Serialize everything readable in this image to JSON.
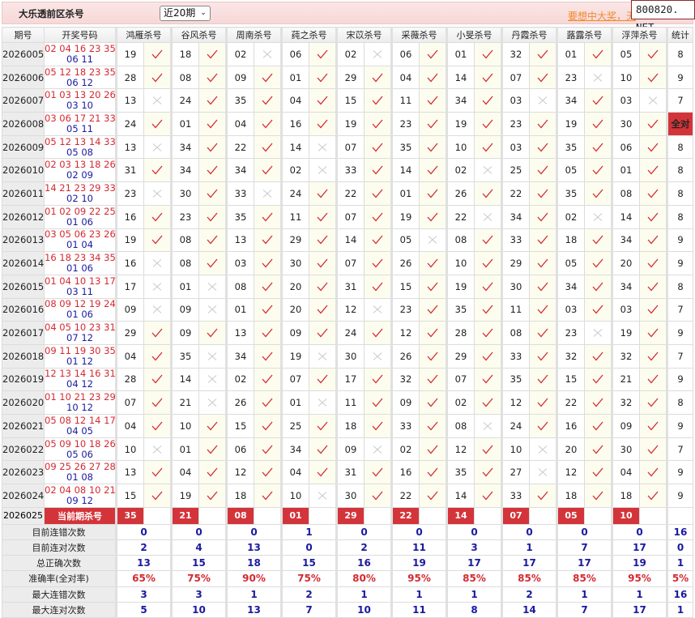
{
  "header": {
    "title": "大乐透前区杀号",
    "period_select": "近20期",
    "promo_link": "要想中大奖，天",
    "site_badge": "800820. NET"
  },
  "colors": {
    "hit": "#d42a32",
    "miss": "#cccccc",
    "accent": "#d3343a",
    "stat_value": "#1a1aa0"
  },
  "table": {
    "col_issue": "期号",
    "col_draw": "开奖号码",
    "col_count": "统计",
    "groups": [
      "鸿雁杀号",
      "谷风杀号",
      "周南杀号",
      "莼之杀号",
      "宋苡杀号",
      "采薇杀号",
      "小旻杀号",
      "丹霞杀号",
      "蕗露杀号",
      "浮萍杀号"
    ],
    "rows": [
      {
        "issue": "2026005",
        "red": "02 04 16 23 35",
        "blue": "06 11",
        "nums": [
          "19",
          "18",
          "02",
          "06",
          "02",
          "06",
          "01",
          "32",
          "01",
          "05"
        ],
        "hits": [
          1,
          1,
          0,
          1,
          0,
          1,
          1,
          1,
          1,
          1
        ],
        "count": "8"
      },
      {
        "issue": "2026006",
        "red": "05 12 18 23 35",
        "blue": "06 12",
        "nums": [
          "28",
          "08",
          "09",
          "01",
          "29",
          "04",
          "14",
          "07",
          "23",
          "10"
        ],
        "hits": [
          1,
          1,
          1,
          1,
          1,
          1,
          1,
          1,
          0,
          1
        ],
        "count": "9"
      },
      {
        "issue": "2026007",
        "red": "01 03 13 20 26",
        "blue": "03 10",
        "nums": [
          "13",
          "24",
          "35",
          "04",
          "15",
          "11",
          "34",
          "03",
          "34",
          "03"
        ],
        "hits": [
          0,
          1,
          1,
          1,
          1,
          1,
          1,
          0,
          1,
          0
        ],
        "count": "7"
      },
      {
        "issue": "2026008",
        "red": "03 06 17 21 33",
        "blue": "05 11",
        "nums": [
          "24",
          "01",
          "04",
          "16",
          "19",
          "23",
          "19",
          "23",
          "19",
          "30"
        ],
        "hits": [
          1,
          1,
          1,
          1,
          1,
          1,
          1,
          1,
          1,
          1
        ],
        "count": "全对"
      },
      {
        "issue": "2026009",
        "red": "05 12 13 14 33",
        "blue": "05 08",
        "nums": [
          "13",
          "34",
          "22",
          "14",
          "07",
          "35",
          "10",
          "03",
          "35",
          "06"
        ],
        "hits": [
          0,
          1,
          1,
          0,
          1,
          1,
          1,
          1,
          1,
          1
        ],
        "count": "8"
      },
      {
        "issue": "2026010",
        "red": "02 03 13 18 26",
        "blue": "02 09",
        "nums": [
          "31",
          "34",
          "34",
          "02",
          "33",
          "14",
          "02",
          "25",
          "05",
          "01"
        ],
        "hits": [
          1,
          1,
          1,
          0,
          1,
          1,
          0,
          1,
          1,
          1
        ],
        "count": "8"
      },
      {
        "issue": "2026011",
        "red": "14 21 23 29 33",
        "blue": "02 10",
        "nums": [
          "23",
          "30",
          "33",
          "24",
          "22",
          "01",
          "26",
          "22",
          "35",
          "08"
        ],
        "hits": [
          0,
          1,
          0,
          1,
          1,
          1,
          1,
          1,
          1,
          1
        ],
        "count": "8"
      },
      {
        "issue": "2026012",
        "red": "01 02 09 22 25",
        "blue": "01 06",
        "nums": [
          "16",
          "23",
          "35",
          "11",
          "07",
          "19",
          "22",
          "34",
          "02",
          "14"
        ],
        "hits": [
          1,
          1,
          1,
          1,
          1,
          1,
          0,
          1,
          0,
          1
        ],
        "count": "8"
      },
      {
        "issue": "2026013",
        "red": "03 05 06 23 26",
        "blue": "01 04",
        "nums": [
          "19",
          "08",
          "13",
          "29",
          "14",
          "05",
          "08",
          "33",
          "18",
          "34"
        ],
        "hits": [
          1,
          1,
          1,
          1,
          1,
          0,
          1,
          1,
          1,
          1
        ],
        "count": "9"
      },
      {
        "issue": "2026014",
        "red": "16 18 23 34 35",
        "blue": "01 06",
        "nums": [
          "16",
          "08",
          "03",
          "30",
          "07",
          "26",
          "10",
          "29",
          "05",
          "20"
        ],
        "hits": [
          0,
          1,
          1,
          1,
          1,
          1,
          1,
          1,
          1,
          1
        ],
        "count": "9"
      },
      {
        "issue": "2026015",
        "red": "01 04 10 13 17",
        "blue": "03 11",
        "nums": [
          "17",
          "01",
          "08",
          "20",
          "31",
          "15",
          "19",
          "30",
          "34",
          "34"
        ],
        "hits": [
          0,
          0,
          1,
          1,
          1,
          1,
          1,
          1,
          1,
          1
        ],
        "count": "8"
      },
      {
        "issue": "2026016",
        "red": "08 09 12 19 24",
        "blue": "01 06",
        "nums": [
          "09",
          "09",
          "01",
          "20",
          "12",
          "23",
          "35",
          "11",
          "03",
          "03"
        ],
        "hits": [
          0,
          0,
          1,
          1,
          0,
          1,
          1,
          1,
          1,
          1
        ],
        "count": "7"
      },
      {
        "issue": "2026017",
        "red": "04 05 10 23 31",
        "blue": "07 12",
        "nums": [
          "29",
          "09",
          "13",
          "09",
          "24",
          "12",
          "28",
          "08",
          "23",
          "19"
        ],
        "hits": [
          1,
          1,
          1,
          1,
          1,
          1,
          1,
          1,
          0,
          1
        ],
        "count": "9"
      },
      {
        "issue": "2026018",
        "red": "09 11 19 30 35",
        "blue": "01 12",
        "nums": [
          "04",
          "35",
          "34",
          "19",
          "30",
          "26",
          "29",
          "33",
          "32",
          "32"
        ],
        "hits": [
          1,
          0,
          1,
          0,
          0,
          1,
          1,
          1,
          1,
          1
        ],
        "count": "7"
      },
      {
        "issue": "2026019",
        "red": "12 13 14 16 31",
        "blue": "04 12",
        "nums": [
          "28",
          "14",
          "02",
          "07",
          "17",
          "32",
          "07",
          "35",
          "15",
          "21"
        ],
        "hits": [
          1,
          0,
          1,
          1,
          1,
          1,
          1,
          1,
          1,
          1
        ],
        "count": "9"
      },
      {
        "issue": "2026020",
        "red": "01 10 21 23 29",
        "blue": "10 12",
        "nums": [
          "07",
          "21",
          "26",
          "01",
          "11",
          "09",
          "02",
          "12",
          "22",
          "32"
        ],
        "hits": [
          1,
          0,
          1,
          0,
          1,
          1,
          1,
          1,
          1,
          1
        ],
        "count": "8"
      },
      {
        "issue": "2026021",
        "red": "05 08 12 14 17",
        "blue": "04 05",
        "nums": [
          "04",
          "10",
          "15",
          "25",
          "18",
          "33",
          "08",
          "24",
          "16",
          "09"
        ],
        "hits": [
          1,
          1,
          1,
          1,
          1,
          1,
          0,
          1,
          1,
          1
        ],
        "count": "9"
      },
      {
        "issue": "2026022",
        "red": "05 09 10 18 26",
        "blue": "05 06",
        "nums": [
          "10",
          "01",
          "06",
          "34",
          "09",
          "02",
          "12",
          "10",
          "20",
          "30"
        ],
        "hits": [
          0,
          1,
          1,
          1,
          0,
          1,
          1,
          0,
          1,
          1
        ],
        "count": "7"
      },
      {
        "issue": "2026023",
        "red": "09 25 26 27 28",
        "blue": "01 08",
        "nums": [
          "13",
          "04",
          "12",
          "04",
          "31",
          "16",
          "35",
          "27",
          "12",
          "04"
        ],
        "hits": [
          1,
          1,
          1,
          1,
          1,
          1,
          1,
          0,
          1,
          1
        ],
        "count": "9"
      },
      {
        "issue": "2026024",
        "red": "02 04 08 10 21",
        "blue": "09 12",
        "nums": [
          "15",
          "19",
          "18",
          "10",
          "30",
          "22",
          "14",
          "33",
          "18",
          "18"
        ],
        "hits": [
          1,
          1,
          1,
          0,
          1,
          1,
          1,
          1,
          1,
          1
        ],
        "count": "9"
      }
    ],
    "current": {
      "issue": "2026025",
      "label": "当前期杀号",
      "nums": [
        "35",
        "21",
        "08",
        "01",
        "29",
        "22",
        "14",
        "07",
        "05",
        "10"
      ]
    },
    "stats": [
      {
        "label": "目前连错次数",
        "values": [
          "0",
          "0",
          "0",
          "1",
          "0",
          "0",
          "0",
          "0",
          "0",
          "0"
        ],
        "count": "16"
      },
      {
        "label": "目前连对次数",
        "values": [
          "2",
          "4",
          "13",
          "0",
          "2",
          "11",
          "3",
          "1",
          "7",
          "17"
        ],
        "count": "0"
      },
      {
        "label": "总正确次数",
        "values": [
          "13",
          "15",
          "18",
          "15",
          "16",
          "19",
          "17",
          "17",
          "17",
          "19"
        ],
        "count": "1"
      },
      {
        "label": "准确率(全对率)",
        "values": [
          "65%",
          "75%",
          "90%",
          "75%",
          "80%",
          "95%",
          "85%",
          "85%",
          "85%",
          "95%"
        ],
        "count": "5%"
      },
      {
        "label": "最大连错次数",
        "values": [
          "3",
          "3",
          "1",
          "2",
          "1",
          "1",
          "1",
          "2",
          "1",
          "1"
        ],
        "count": "16"
      },
      {
        "label": "最大连对次数",
        "values": [
          "5",
          "10",
          "13",
          "7",
          "10",
          "11",
          "8",
          "14",
          "7",
          "17"
        ],
        "count": "1"
      }
    ]
  }
}
